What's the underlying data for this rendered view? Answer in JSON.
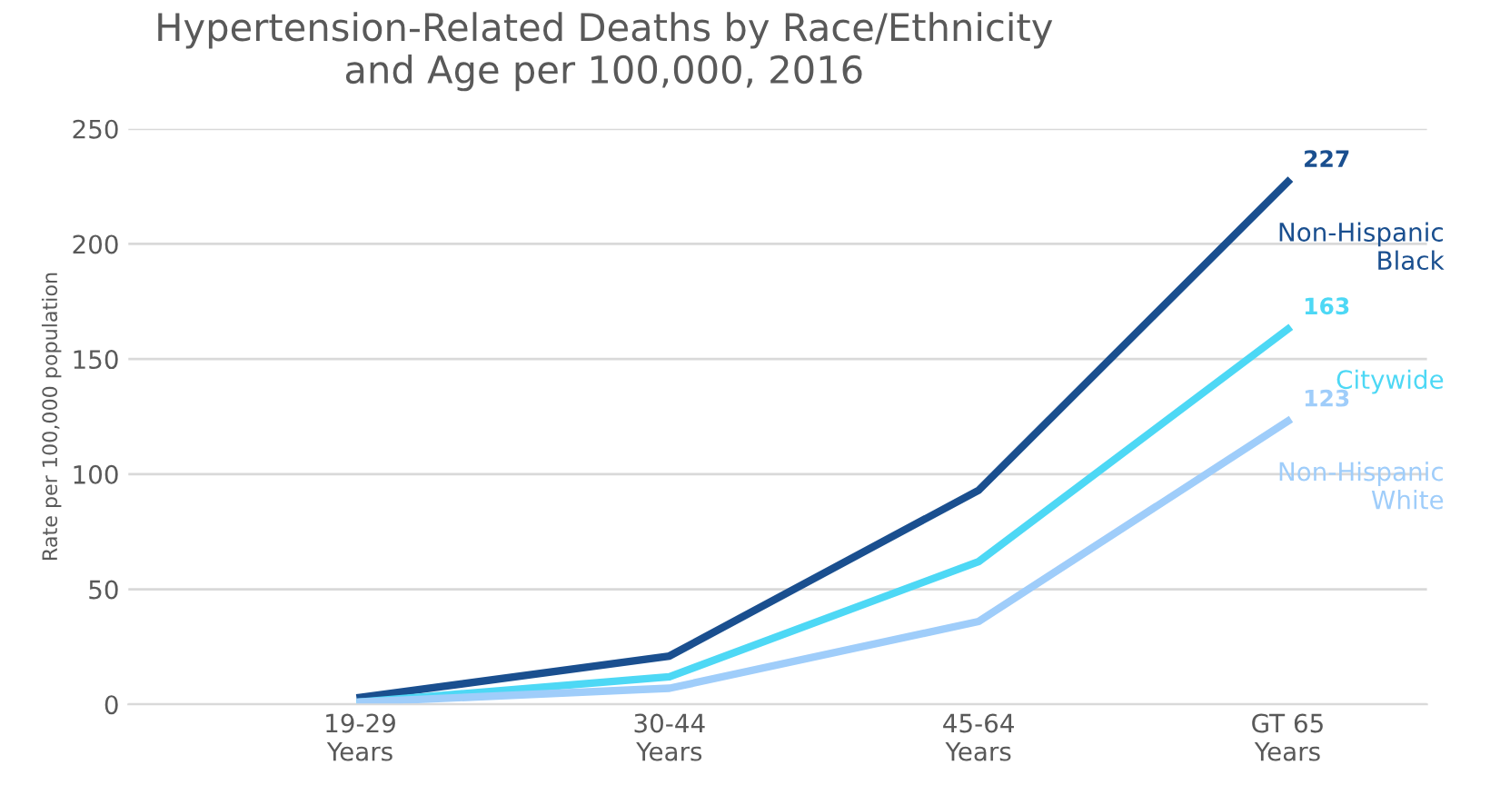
{
  "chart_data": {
    "type": "line",
    "title": "Hypertension-Related Deaths by Race/Ethnicity\nand Age per 100,000, 2016",
    "ylabel": "Rate per 100,000 population",
    "categories": [
      "19-29\nYears",
      "30-44\nYears",
      "45-64\nYears",
      "GT 65\nYears"
    ],
    "series": [
      {
        "name": "Non-Hispanic\nBlack",
        "color": "#1a4f8f",
        "values": [
          3,
          21,
          93,
          227
        ],
        "value_labels": [
          null,
          null,
          null,
          "227"
        ]
      },
      {
        "name": "Citywide",
        "color": "#4dd8f5",
        "values": [
          1,
          12,
          62,
          163
        ],
        "value_labels": [
          null,
          null,
          null,
          "163"
        ]
      },
      {
        "name": "Non-Hispanic\nWhite",
        "color": "#9fcdfa",
        "values": [
          1,
          7,
          36,
          123
        ],
        "value_labels": [
          null,
          null,
          null,
          "123"
        ]
      }
    ],
    "ylim": [
      0,
      250
    ],
    "yticks": [
      0,
      50,
      100,
      150,
      200,
      250
    ],
    "grid": "y",
    "legend": false,
    "marker": "none",
    "line_style": "solid"
  }
}
